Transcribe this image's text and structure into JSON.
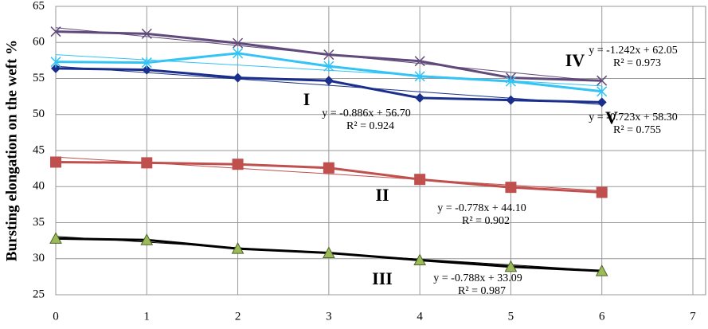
{
  "chart_data": {
    "type": "line",
    "y_label": "Bursting elongation on the weft %",
    "xlim": [
      0,
      7
    ],
    "xticks": [
      0,
      1,
      2,
      3,
      4,
      5,
      6,
      7
    ],
    "ylim": [
      25,
      65
    ],
    "yticks": [
      25,
      30,
      35,
      40,
      45,
      50,
      55,
      60,
      65
    ],
    "grid": true,
    "x": [
      0,
      1,
      2,
      3,
      4,
      5,
      6
    ],
    "series": [
      {
        "name": "I",
        "color": "#1a2f8c",
        "marker": "diamond",
        "values": [
          56.4,
          56.2,
          55.1,
          54.7,
          52.3,
          52.0,
          51.7
        ],
        "trend": {
          "slope": -0.886,
          "intercept": 56.7,
          "equation": "y = -0.886x + 56.70",
          "r2": "R² = 0.924"
        }
      },
      {
        "name": "II",
        "color": "#c0504d",
        "marker": "square",
        "values": [
          43.4,
          43.3,
          43.1,
          42.6,
          41.0,
          39.9,
          39.2
        ],
        "trend": {
          "slope": -0.778,
          "intercept": 44.1,
          "equation": "y = -0.778x + 44.10",
          "r2": "R² = 0.902"
        }
      },
      {
        "name": "III",
        "color": "#000000",
        "marker_color": "#9bbb59",
        "marker": "triangle",
        "values": [
          32.8,
          32.6,
          31.4,
          30.8,
          29.8,
          28.9,
          28.3
        ],
        "trend": {
          "slope": -0.788,
          "intercept": 33.09,
          "equation": "y = -0.788x + 33.09",
          "r2": "R² = 0.987"
        }
      },
      {
        "name": "IV",
        "color": "#604a7b",
        "marker": "x",
        "values": [
          61.5,
          61.2,
          59.9,
          58.3,
          57.4,
          55.1,
          54.7
        ],
        "trend": {
          "slope": -1.242,
          "intercept": 62.05,
          "equation": "y = -1.242x + 62.05",
          "r2": "R² = 0.973"
        }
      },
      {
        "name": "V",
        "color": "#33c3f5",
        "marker": "star",
        "values": [
          57.3,
          57.2,
          58.5,
          56.7,
          55.3,
          54.6,
          53.2
        ],
        "trend": {
          "slope": -0.723,
          "intercept": 58.3,
          "equation": "y = -0.723x + 58.30",
          "r2": "R² = 0.755"
        }
      }
    ]
  }
}
